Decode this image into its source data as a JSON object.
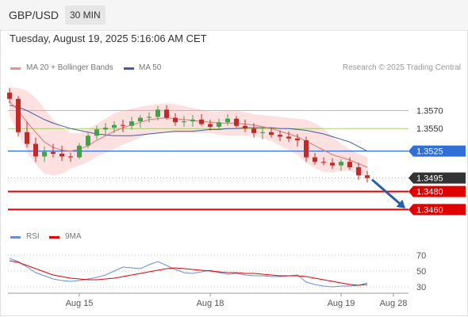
{
  "header": {
    "symbol": "GBP/USD",
    "timeframe": "30 MIN",
    "datetime": "Tuesday, August 19, 2025 5:16:06 AM CET"
  },
  "legend": {
    "ma20_label": "MA 20 + Bollinger Bands",
    "ma50_label": "MA 50",
    "credit": "Research © 2025 Trading Central"
  },
  "rsi_legend": {
    "rsi_label": "RSI",
    "ma_label": "9MA"
  },
  "colors": {
    "bull": "#44a04a",
    "bear": "#c62828",
    "ma20": "#e57373",
    "ma50": "#3b5e9e",
    "bollinger_fill": "#fde0e0",
    "resistance": "#8bc34a",
    "pivot": "#2f6fd6",
    "support": "#e10000",
    "current": "#333333",
    "rsi": "#6a8ed6",
    "rsi_ma": "#e00000",
    "arrow": "#2a5ea8"
  },
  "chart_data": {
    "type": "candlestick",
    "timeframe": "30 MIN",
    "instrument": "GBP/USD",
    "y_range": [
      1.3448,
      1.3596
    ],
    "x_tick_labels": [
      "Aug 15",
      "Aug 18",
      "Aug 19",
      "Aug 28"
    ],
    "x_tick_index": [
      8,
      23,
      38,
      44
    ],
    "candles": [
      [
        1.359,
        1.3595,
        1.3578,
        1.3583
      ],
      [
        1.3583,
        1.3586,
        1.3541,
        1.3546
      ],
      [
        1.3546,
        1.3558,
        1.3529,
        1.3533
      ],
      [
        1.3533,
        1.354,
        1.3513,
        1.3519
      ],
      [
        1.3519,
        1.353,
        1.3513,
        1.3524
      ],
      [
        1.3524,
        1.3533,
        1.3518,
        1.3522
      ],
      [
        1.3522,
        1.3531,
        1.3514,
        1.3519
      ],
      [
        1.3519,
        1.3523,
        1.3513,
        1.3518
      ],
      [
        1.3518,
        1.3534,
        1.3516,
        1.3531
      ],
      [
        1.3531,
        1.3545,
        1.3528,
        1.3542
      ],
      [
        1.3542,
        1.3553,
        1.3538,
        1.3549
      ],
      [
        1.3549,
        1.3556,
        1.3543,
        1.3551
      ],
      [
        1.3551,
        1.3558,
        1.3545,
        1.3554
      ],
      [
        1.3554,
        1.356,
        1.3546,
        1.3553
      ],
      [
        1.3553,
        1.3563,
        1.3549,
        1.3558
      ],
      [
        1.3558,
        1.3565,
        1.3551,
        1.3562
      ],
      [
        1.3562,
        1.3568,
        1.3557,
        1.3563
      ],
      [
        1.3563,
        1.3575,
        1.3559,
        1.3571
      ],
      [
        1.3571,
        1.3576,
        1.356,
        1.3562
      ],
      [
        1.3562,
        1.3567,
        1.3553,
        1.3557
      ],
      [
        1.3557,
        1.3564,
        1.3552,
        1.3558
      ],
      [
        1.3558,
        1.3565,
        1.3552,
        1.356
      ],
      [
        1.356,
        1.3566,
        1.3553,
        1.3555
      ],
      [
        1.3555,
        1.356,
        1.3548,
        1.3552
      ],
      [
        1.3552,
        1.3561,
        1.3549,
        1.3557
      ],
      [
        1.3557,
        1.3566,
        1.3553,
        1.3561
      ],
      [
        1.3561,
        1.3564,
        1.3551,
        1.3553
      ],
      [
        1.3553,
        1.356,
        1.3546,
        1.355
      ],
      [
        1.355,
        1.3556,
        1.354,
        1.3545
      ],
      [
        1.3545,
        1.3552,
        1.3538,
        1.3546
      ],
      [
        1.3546,
        1.3551,
        1.354,
        1.3543
      ],
      [
        1.3543,
        1.3548,
        1.3536,
        1.3541
      ],
      [
        1.3541,
        1.3547,
        1.3535,
        1.3539
      ],
      [
        1.3539,
        1.3544,
        1.353,
        1.3537
      ],
      [
        1.3537,
        1.3541,
        1.3513,
        1.3518
      ],
      [
        1.3518,
        1.3523,
        1.351,
        1.3513
      ],
      [
        1.3513,
        1.3518,
        1.3509,
        1.3512
      ],
      [
        1.3512,
        1.3517,
        1.3505,
        1.3509
      ],
      [
        1.3509,
        1.3516,
        1.3503,
        1.3513
      ],
      [
        1.3513,
        1.3518,
        1.3504,
        1.3507
      ],
      [
        1.3507,
        1.3512,
        1.3493,
        1.3498
      ],
      [
        1.3498,
        1.3503,
        1.349,
        1.3495
      ]
    ],
    "ma20": [
      1.358,
      1.357,
      1.3557,
      1.3546,
      1.3535,
      1.3529,
      1.3526,
      1.3525,
      1.3527,
      1.3531,
      1.3537,
      1.3542,
      1.3547,
      1.3551,
      1.3554,
      1.3557,
      1.356,
      1.3561,
      1.3562,
      1.3561,
      1.356,
      1.3559,
      1.3558,
      1.3557,
      1.3556,
      1.3556,
      1.3556,
      1.3555,
      1.3554,
      1.3552,
      1.355,
      1.3547,
      1.3544,
      1.3541,
      1.3536,
      1.3531,
      1.3526,
      1.3521,
      1.3518,
      1.3515,
      1.3511,
      1.3507
    ],
    "bollinger_upper": [
      1.3596,
      1.3595,
      1.3592,
      1.3584,
      1.3572,
      1.356,
      1.3551,
      1.3545,
      1.3545,
      1.3549,
      1.3555,
      1.3561,
      1.3567,
      1.357,
      1.3572,
      1.3574,
      1.3576,
      1.3577,
      1.3578,
      1.3577,
      1.3575,
      1.3573,
      1.3571,
      1.3569,
      1.3569,
      1.357,
      1.357,
      1.3568,
      1.3566,
      1.3565,
      1.3564,
      1.3563,
      1.3562,
      1.3561,
      1.356,
      1.3556,
      1.355,
      1.3541,
      1.3533,
      1.3527,
      1.3522,
      1.3518
    ],
    "bollinger_lower": [
      1.3564,
      1.3545,
      1.3524,
      1.351,
      1.35,
      1.3498,
      1.35,
      1.3505,
      1.3509,
      1.3513,
      1.3519,
      1.3523,
      1.3527,
      1.3532,
      1.3536,
      1.354,
      1.3544,
      1.3545,
      1.3546,
      1.3545,
      1.3545,
      1.3545,
      1.3545,
      1.3545,
      1.3543,
      1.3542,
      1.3542,
      1.3542,
      1.3542,
      1.3539,
      1.3536,
      1.3531,
      1.3526,
      1.3521,
      1.3512,
      1.3506,
      1.3502,
      1.3501,
      1.3503,
      1.3503,
      1.35,
      1.3496
    ],
    "ma50": [
      1.3576,
      1.3574,
      1.357,
      1.3565,
      1.356,
      1.3556,
      1.3553,
      1.355,
      1.3548,
      1.3546,
      1.3544,
      1.3543,
      1.3542,
      1.3542,
      1.3542,
      1.3543,
      1.3544,
      1.3545,
      1.3546,
      1.3547,
      1.3547,
      1.3547,
      1.3548,
      1.3549,
      1.3549,
      1.355,
      1.355,
      1.3551,
      1.3551,
      1.3551,
      1.3551,
      1.355,
      1.355,
      1.3549,
      1.3548,
      1.3546,
      1.3544,
      1.3541,
      1.3538,
      1.3535,
      1.353,
      1.3525
    ],
    "levels": [
      {
        "value": 1.357,
        "label": "1.3570",
        "kind": "resistance"
      },
      {
        "value": 1.355,
        "label": "1.3550",
        "kind": "resistance"
      },
      {
        "value": 1.3525,
        "label": "1.3525",
        "kind": "pivot"
      },
      {
        "value": 1.3495,
        "label": "1.3495",
        "kind": "current"
      },
      {
        "value": 1.348,
        "label": "1.3480",
        "kind": "support"
      },
      {
        "value": 1.346,
        "label": "1.3460",
        "kind": "support"
      }
    ],
    "forecast_arrow": {
      "from": 1.3495,
      "to": 1.346,
      "direction": "down"
    },
    "rsi": {
      "y_range": [
        20,
        80
      ],
      "ticks": [
        70,
        50,
        30
      ],
      "tick_labels": [
        "70",
        "50",
        "30"
      ],
      "values": [
        66,
        62,
        55,
        48,
        44,
        40,
        38,
        37,
        38,
        40,
        42,
        45,
        50,
        55,
        54,
        53,
        58,
        62,
        57,
        52,
        48,
        47,
        49,
        51,
        48,
        46,
        47,
        45,
        44,
        44,
        43,
        43,
        44,
        45,
        36,
        33,
        31,
        30,
        31,
        31,
        32,
        35
      ],
      "ma9": [
        63,
        61,
        57,
        53,
        49,
        45,
        43,
        41,
        40,
        39,
        39,
        40,
        41,
        43,
        45,
        47,
        49,
        51,
        53,
        54,
        53,
        52,
        51,
        50,
        49,
        48,
        48,
        47,
        47,
        46,
        45,
        44,
        44,
        44,
        43,
        41,
        39,
        37,
        35,
        33,
        32,
        33
      ]
    }
  }
}
